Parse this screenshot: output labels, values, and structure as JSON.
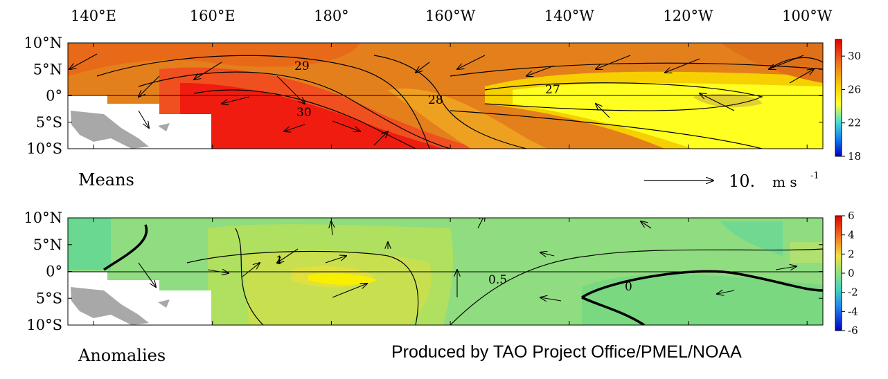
{
  "map": {
    "longitude_labels": [
      "140°E",
      "160°E",
      "180°",
      "160°W",
      "140°W",
      "120°W",
      "100°W"
    ],
    "latitude_labels": [
      "10°N",
      "5°N",
      "0°",
      "5°S",
      "10°S"
    ],
    "panels": [
      {
        "label": "Means",
        "colorbar_ticks": [
          30,
          26,
          22,
          18
        ],
        "contour_labels": [
          "29",
          "30",
          "27",
          "28"
        ]
      },
      {
        "label": "Anomalies",
        "colorbar_ticks": [
          6,
          4,
          2,
          0,
          -2,
          -4,
          -6
        ],
        "contour_labels": [
          "1",
          "0.5",
          "0"
        ]
      }
    ],
    "scale_vector": {
      "value": "10.",
      "unit": "m s",
      "exponent": "-1"
    },
    "credit": "Produced by TAO Project Office/PMEL/NOAA"
  }
}
